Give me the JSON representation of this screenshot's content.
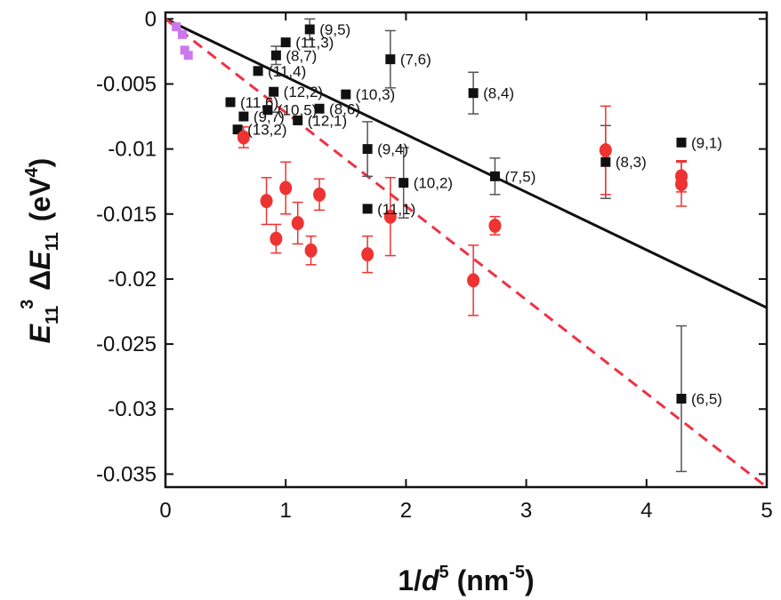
{
  "chart_data": {
    "type": "scatter",
    "xlim": [
      0,
      5
    ],
    "ylim": [
      -0.036,
      0.0005
    ],
    "x_ticks": [
      0,
      1,
      2,
      3,
      4,
      5
    ],
    "x_tick_labels": [
      "0",
      "1",
      "2",
      "3",
      "4",
      "5"
    ],
    "y_ticks": [
      0,
      -0.005,
      -0.01,
      -0.015,
      -0.02,
      -0.025,
      -0.03,
      -0.035
    ],
    "y_tick_labels": [
      "0",
      "-0.005",
      "-0.01",
      "-0.015",
      "-0.02",
      "-0.025",
      "-0.03",
      "-0.035"
    ],
    "xlabel": {
      "main": "1/",
      "italic": "d",
      "sup": "5",
      "unit": " (nm",
      "unit_sup": "-5",
      "close": ")"
    },
    "ylabel": {
      "italic1": "E",
      "sub1": "11",
      "sup1": "3",
      "delta": "Δ",
      "italic2": "E",
      "sub2": "11",
      "unit": "(eV",
      "unit_sup": "4",
      "close": ")"
    },
    "colors": {
      "black_series": "#111111",
      "red_series": "#ee3333",
      "purple_series": "#cc77ee",
      "black_line": "#111111",
      "red_line": "#ee3344"
    },
    "series": [
      {
        "marker": "square",
        "color": "#111111",
        "points": [
          {
            "x": 1.2,
            "y": -0.0008,
            "err": 0.0008,
            "label": "(9,5)"
          },
          {
            "x": 1.0,
            "y": -0.0018,
            "err": 0,
            "label": "(11,3)"
          },
          {
            "x": 0.92,
            "y": -0.0028,
            "err": 0.0007,
            "label": "(8,7)"
          },
          {
            "x": 0.77,
            "y": -0.004,
            "err": 0,
            "label": "(11,4)"
          },
          {
            "x": 0.9,
            "y": -0.0056,
            "err": 0,
            "label": "(12,2)"
          },
          {
            "x": 0.54,
            "y": -0.0064,
            "err": 0,
            "label": "(11,6)"
          },
          {
            "x": 0.85,
            "y": -0.007,
            "err": 0,
            "label": "(10,5)"
          },
          {
            "x": 0.65,
            "y": -0.0075,
            "err": 0,
            "label": "(9,7)"
          },
          {
            "x": 1.28,
            "y": -0.0069,
            "err": 0,
            "label": "(8,6)"
          },
          {
            "x": 1.1,
            "y": -0.0078,
            "err": 0,
            "label": "(12,1)"
          },
          {
            "x": 0.6,
            "y": -0.0085,
            "err": 0,
            "label": "(13,2)"
          },
          {
            "x": 1.5,
            "y": -0.0058,
            "err": 0,
            "label": "(10,3)"
          },
          {
            "x": 1.87,
            "y": -0.0031,
            "err": 0.0022,
            "label": "(7,6)"
          },
          {
            "x": 2.56,
            "y": -0.0057,
            "err": 0.0016,
            "label": "(8,4)"
          },
          {
            "x": 1.68,
            "y": -0.01,
            "err": 0.0021,
            "label": "(9,4)"
          },
          {
            "x": 1.98,
            "y": -0.0126,
            "err": 0.0027,
            "label": "(10,2)"
          },
          {
            "x": 1.68,
            "y": -0.0146,
            "err": 0,
            "label": "(11,1)"
          },
          {
            "x": 2.74,
            "y": -0.0121,
            "err": 0.0014,
            "label": "(7,5)"
          },
          {
            "x": 3.66,
            "y": -0.011,
            "err": 0.0028,
            "label": "(8,3)"
          },
          {
            "x": 4.29,
            "y": -0.0095,
            "err": 0,
            "label": "(9,1)"
          },
          {
            "x": 4.29,
            "y": -0.0292,
            "err": 0.0056,
            "label": "(6,5)"
          }
        ]
      },
      {
        "marker": "circle",
        "color": "#ee3333",
        "points": [
          {
            "x": 0.65,
            "y": -0.0091,
            "err": 0.0008
          },
          {
            "x": 0.84,
            "y": -0.014,
            "err": 0.0018
          },
          {
            "x": 0.92,
            "y": -0.0169,
            "err": 0.0011
          },
          {
            "x": 1.0,
            "y": -0.013,
            "err": 0.002
          },
          {
            "x": 1.1,
            "y": -0.0157,
            "err": 0.0016
          },
          {
            "x": 1.21,
            "y": -0.0178,
            "err": 0.0011
          },
          {
            "x": 1.28,
            "y": -0.0135,
            "err": 0.0012
          },
          {
            "x": 1.68,
            "y": -0.0181,
            "err": 0.0014
          },
          {
            "x": 1.87,
            "y": -0.0152,
            "err": 0.003
          },
          {
            "x": 2.56,
            "y": -0.0201,
            "err": 0.0027
          },
          {
            "x": 2.74,
            "y": -0.0159,
            "err": 0.0007
          },
          {
            "x": 3.66,
            "y": -0.0101,
            "err": 0.0034
          },
          {
            "x": 4.29,
            "y": -0.0121,
            "err": 0.0012
          },
          {
            "x": 4.29,
            "y": -0.0127,
            "err": 0.0017
          }
        ]
      },
      {
        "marker": "square",
        "color": "#cc77ee",
        "points": [
          {
            "x": 0.09,
            "y": -0.0006,
            "err": 0
          },
          {
            "x": 0.14,
            "y": -0.0012,
            "err": 0
          },
          {
            "x": 0.16,
            "y": -0.0024,
            "err": 0
          },
          {
            "x": 0.19,
            "y": -0.0028,
            "err": 0
          }
        ]
      }
    ],
    "fit_lines": [
      {
        "style": "solid",
        "color": "#111111",
        "x": [
          0,
          5
        ],
        "y": [
          0,
          -0.0222
        ]
      },
      {
        "style": "dashed",
        "color": "#ee3344",
        "x": [
          0,
          5
        ],
        "y": [
          0,
          -0.036
        ]
      }
    ]
  }
}
